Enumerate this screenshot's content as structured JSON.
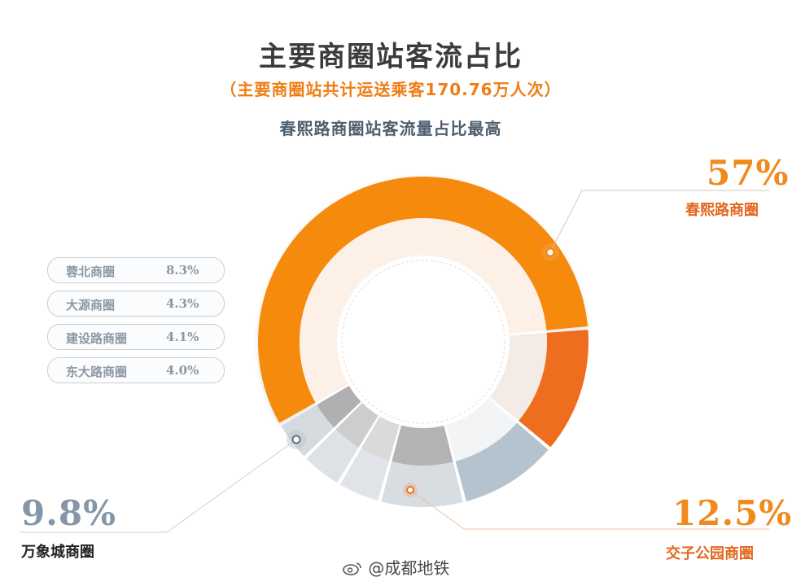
{
  "header": {
    "title": "主要商圈站客流占比",
    "subtitle": "（主要商圈站共计运送乘客170.76万人次）",
    "caption": "春熙路商圈站客流量占比最高"
  },
  "chart_data": {
    "type": "pie",
    "title": "主要商圈站客流占比",
    "categories": [
      "春熙路商圈",
      "交子公园商圈",
      "万象城商圈",
      "蓉北商圈",
      "大源商圈",
      "建设路商圈",
      "东大路商圈"
    ],
    "values": [
      57,
      12.5,
      9.8,
      8.3,
      4.3,
      4.1,
      4.0
    ],
    "value_labels": [
      "57%",
      "12.5%",
      "9.8%",
      "8.3%",
      "4.3%",
      "4.1%",
      "4.0%"
    ],
    "colors": [
      "#f58a0c",
      "#ef6d1e",
      "#b4c3cd",
      "#d8dde2",
      "#e0e4e8",
      "#dde2e6",
      "#d5dade"
    ],
    "inner_colors": [
      "#fdf0e6",
      "#f3ebe6",
      "#f3f4f5",
      "#b4b4b6",
      "#dadadb",
      "#cdcdce",
      "#b0b0b2"
    ]
  },
  "legend": [
    {
      "name": "蓉北商圈",
      "pct": "8.3%"
    },
    {
      "name": "大源商圈",
      "pct": "4.3%"
    },
    {
      "name": "建设路商圈",
      "pct": "4.1%"
    },
    {
      "name": "东大路商圈",
      "pct": "4.0%"
    }
  ],
  "callouts": {
    "chunxi": {
      "pct": "57%",
      "name": "春熙路商圈"
    },
    "jiaozi": {
      "pct": "12.5%",
      "name": "交子公园商圈"
    },
    "wanxiang": {
      "pct": "9.8%",
      "name": "万象城商圈"
    }
  },
  "watermark": {
    "text": "@成都地铁",
    "icon": "weibo-icon"
  }
}
